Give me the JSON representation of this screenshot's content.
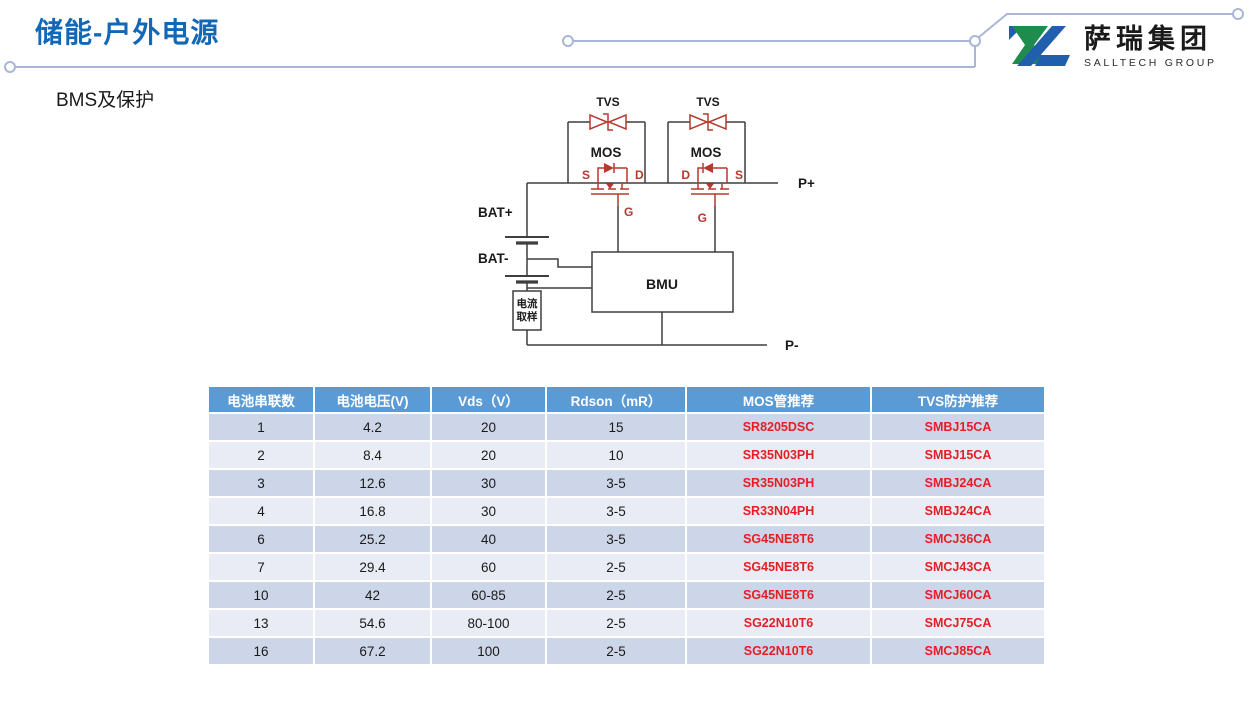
{
  "slide": {
    "title": "储能-户外电源",
    "subtitle": "BMS及保护"
  },
  "logo": {
    "name_cn": "萨瑞集团",
    "name_en": "SALLTECH GROUP"
  },
  "diagram": {
    "labels": {
      "tvs": "TVS",
      "mos": "MOS",
      "s": "S",
      "d": "D",
      "g": "G",
      "bat_plus": "BAT+",
      "bat_minus": "BAT-",
      "bmu": "BMU",
      "current_sample_line1": "电流",
      "current_sample_line2": "取样",
      "p_plus": "P+",
      "p_minus": "P-"
    }
  },
  "table": {
    "headers": [
      "电池串联数",
      "电池电压(V)",
      "Vds（V）",
      "Rdson（mR）",
      "MOS管推荐",
      "TVS防护推荐"
    ],
    "part_columns": [
      4,
      5
    ],
    "rows": [
      [
        "1",
        "4.2",
        "20",
        "15",
        "SR8205DSC",
        "SMBJ15CA"
      ],
      [
        "2",
        "8.4",
        "20",
        "10",
        "SR35N03PH",
        "SMBJ15CA"
      ],
      [
        "3",
        "12.6",
        "30",
        "3-5",
        "SR35N03PH",
        "SMBJ24CA"
      ],
      [
        "4",
        "16.8",
        "30",
        "3-5",
        "SR33N04PH",
        "SMBJ24CA"
      ],
      [
        "6",
        "25.2",
        "40",
        "3-5",
        "SG45NE8T6",
        "SMCJ36CA"
      ],
      [
        "7",
        "29.4",
        "60",
        "2-5",
        "SG45NE8T6",
        "SMCJ43CA"
      ],
      [
        "10",
        "42",
        "60-85",
        "2-5",
        "SG45NE8T6",
        "SMCJ60CA"
      ],
      [
        "13",
        "54.6",
        "80-100",
        "2-5",
        "SG22N10T6",
        "SMCJ75CA"
      ],
      [
        "16",
        "67.2",
        "100",
        "2-5",
        "SG22N10T6",
        "SMCJ85CA"
      ]
    ]
  },
  "theme": {
    "title-blue": "#1268B6",
    "line-gray": "#A9B6D6",
    "header-bg": "#5B9BD5",
    "row-odd": "#CDD6E8",
    "row-even": "#E9ECF4",
    "part-red": "#E51E25",
    "wire-black": "#3F3F3F",
    "comp-red": "#B5392F",
    "logo-green": "#1F8B4D",
    "logo-blue": "#1F5FAE"
  }
}
